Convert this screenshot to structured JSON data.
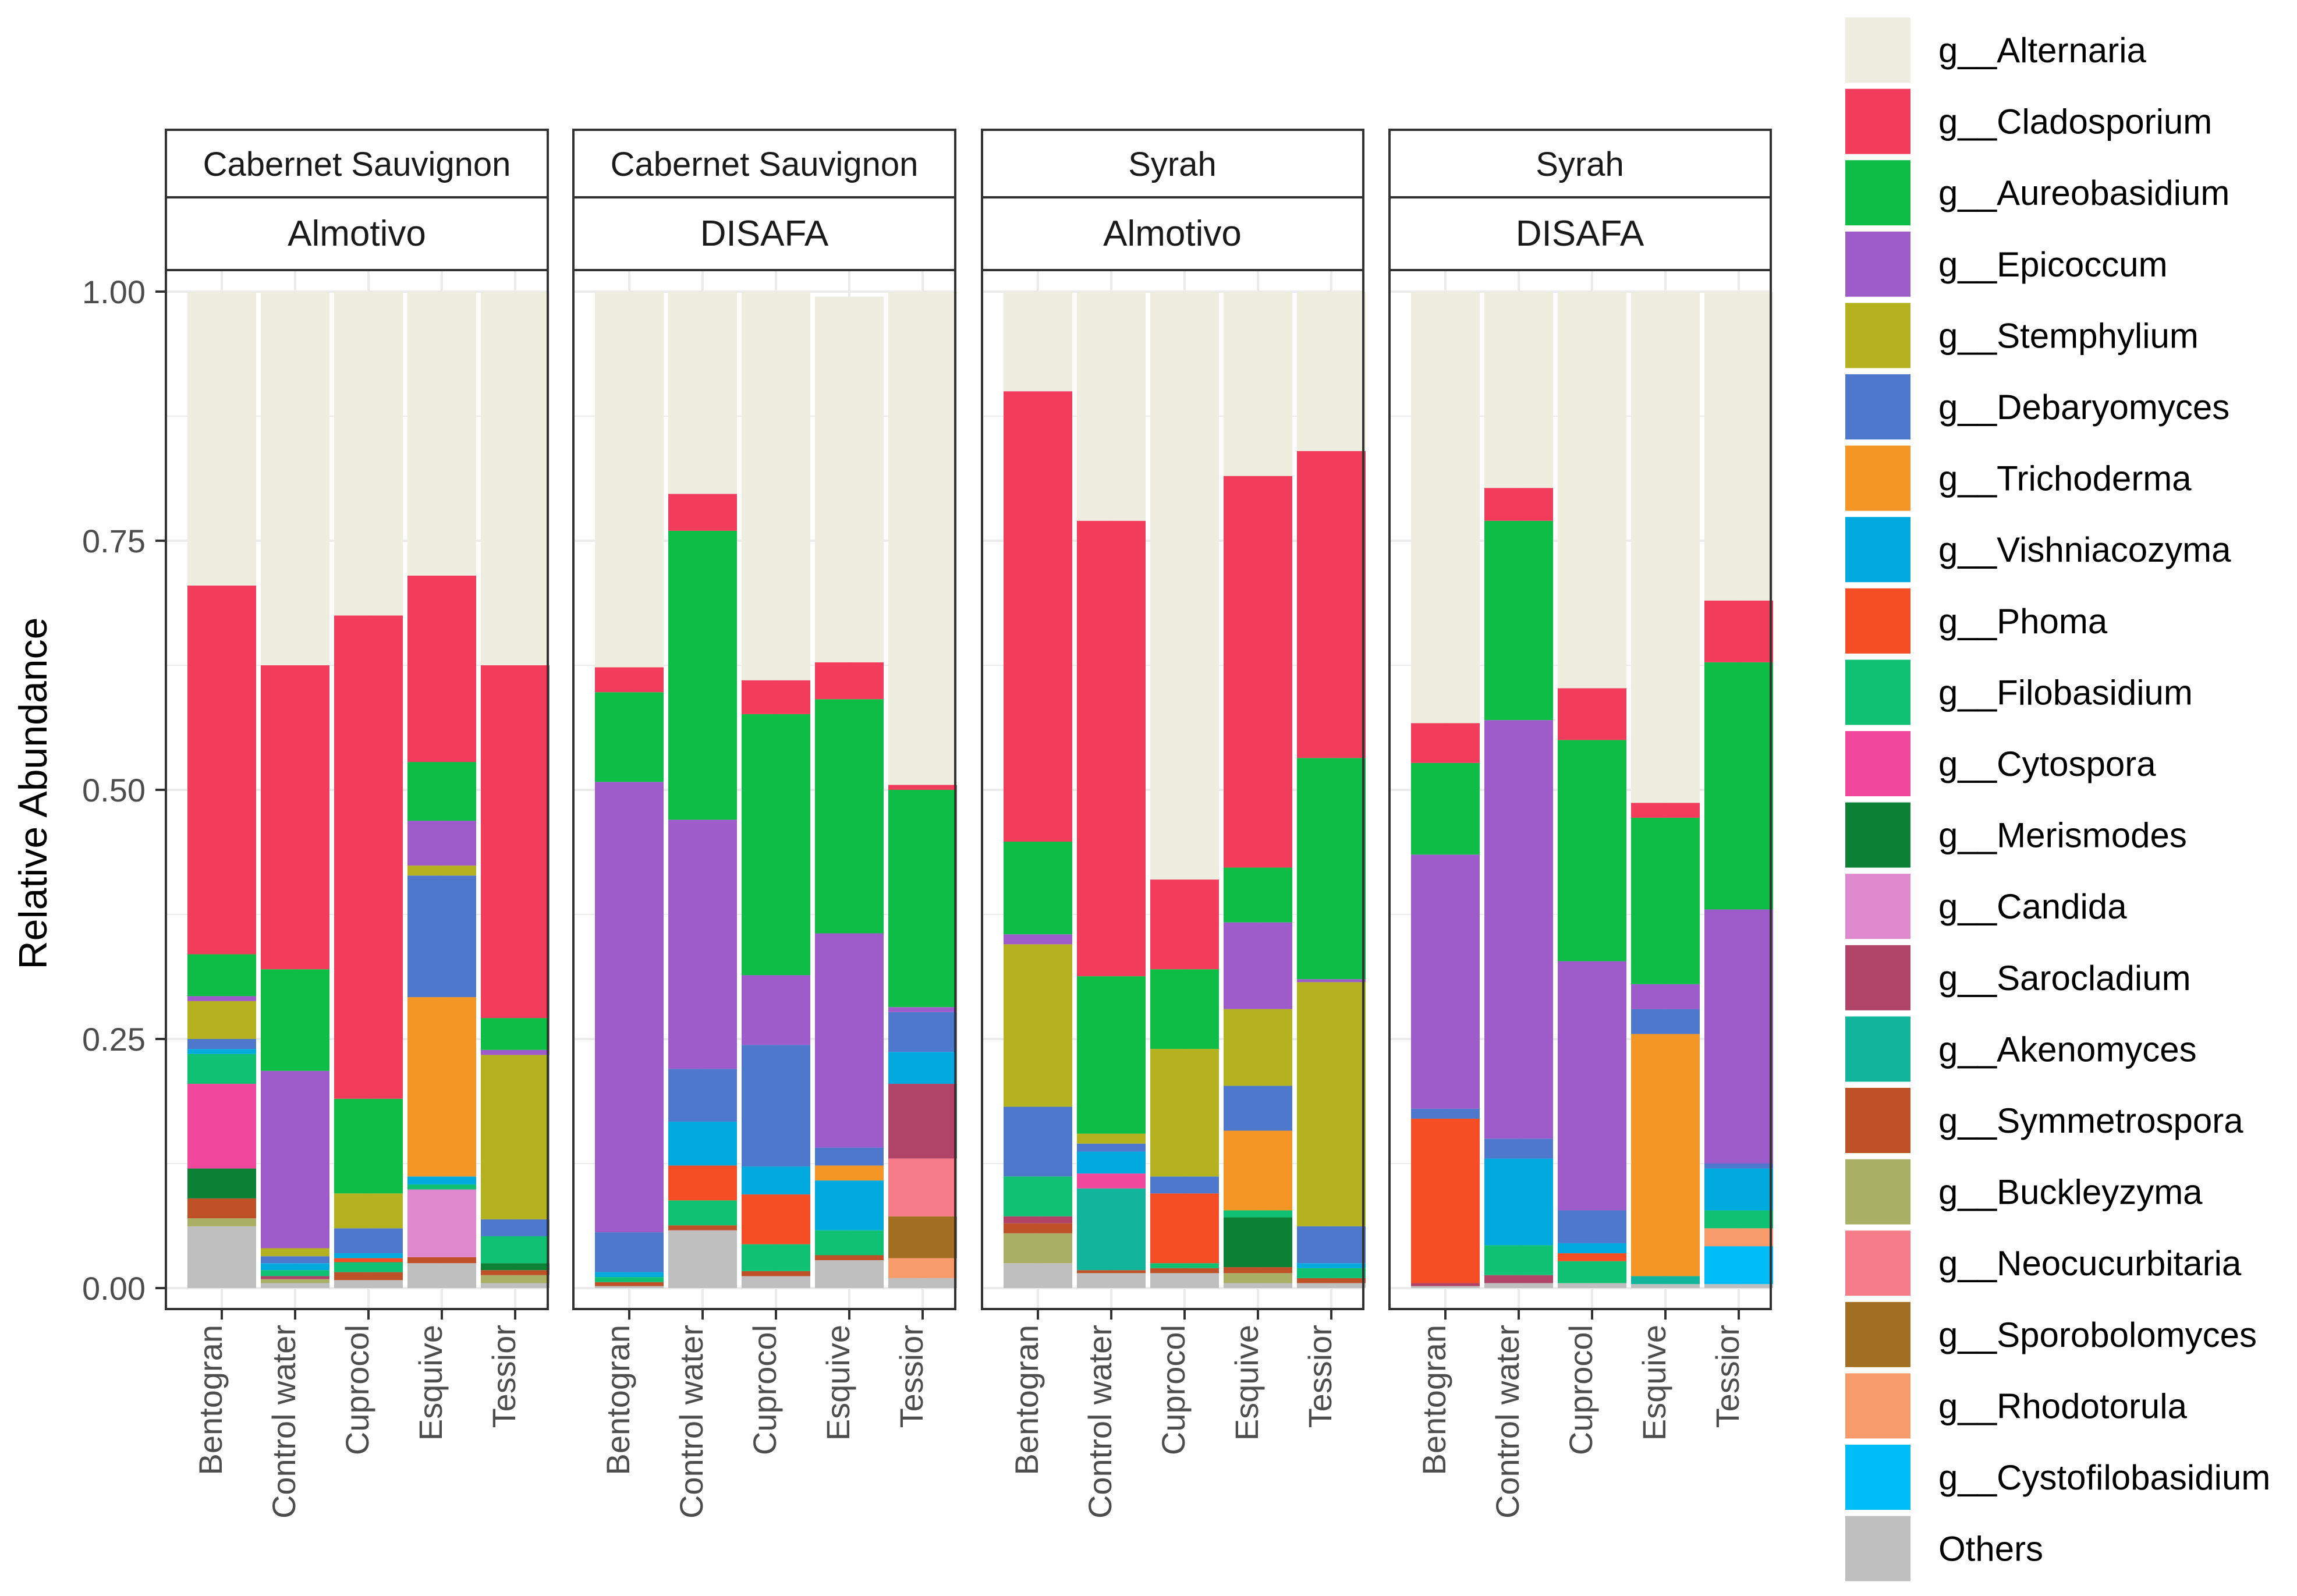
{
  "chart_data": {
    "type": "bar",
    "stacked": true,
    "ylabel": "Relative Abundance",
    "ylim": [
      0,
      1.0
    ],
    "yticks": [
      "0.00",
      "0.25",
      "0.50",
      "0.75",
      "1.00"
    ],
    "categories": [
      "Bentogran",
      "Control water",
      "Cuprocol",
      "Esquive",
      "Tessior"
    ],
    "taxa": [
      {
        "name": "g__Alternaria",
        "color": "#EEEEE0"
      },
      {
        "name": "g__Cladosporium",
        "color": "#F23C5C"
      },
      {
        "name": "g__Aureobasidium",
        "color": "#0EBD45"
      },
      {
        "name": "g__Epicoccum",
        "color": "#9E5BCA"
      },
      {
        "name": "g__Stemphylium",
        "color": "#B4B31F"
      },
      {
        "name": "g__Debaryomyces",
        "color": "#4E78CC"
      },
      {
        "name": "g__Trichoderma",
        "color": "#F39626"
      },
      {
        "name": "g__Vishniacozyma",
        "color": "#00AADF"
      },
      {
        "name": "g__Phoma",
        "color": "#F54E25"
      },
      {
        "name": "g__Filobasidium",
        "color": "#10C073"
      },
      {
        "name": "g__Cytospora",
        "color": "#F1489D"
      },
      {
        "name": "g__Merismodes",
        "color": "#0B8236"
      },
      {
        "name": "g__Candida",
        "color": "#DE88CD"
      },
      {
        "name": "g__Sarocladium",
        "color": "#AF4468"
      },
      {
        "name": "g__Akenomyces",
        "color": "#12B59C"
      },
      {
        "name": "g__Symmetrospora",
        "color": "#BF5128"
      },
      {
        "name": "g__Buckleyzyma",
        "color": "#A9B065"
      },
      {
        "name": "g__Neocucurbitaria",
        "color": "#F67C89"
      },
      {
        "name": "g__Sporobolomyces",
        "color": "#A16F21"
      },
      {
        "name": "g__Rhodotorula",
        "color": "#F79A6C"
      },
      {
        "name": "g__Cystofilobasidium",
        "color": "#00BDF8"
      },
      {
        "name": "Others",
        "color": "#BFBFBF"
      }
    ],
    "panels": [
      {
        "strip_top": "Cabernet Sauvignon",
        "strip_bottom": "Almotivo",
        "bars": [
          {
            "category": "Bentogran",
            "values": {
              "Others": 0.062,
              "g__Buckleyzyma": 0.008,
              "g__Symmetrospora": 0.02,
              "g__Merismodes": 0.03,
              "g__Cytospora": 0.085,
              "g__Filobasidium": 0.03,
              "g__Vishniacozyma": 0.005,
              "g__Debaryomyces": 0.01,
              "g__Epicoccum": 0.005,
              "g__Stemphylium": 0.038,
              "g__Aureobasidium": 0.042,
              "g__Cladosporium": 0.37,
              "g__Alternaria": 0.295
            }
          },
          {
            "category": "Control water",
            "values": {
              "Others": 0.005,
              "g__Sarocladium": 0.003,
              "g__Buckleyzyma": 0.004,
              "g__Filobasidium": 0.006,
              "g__Vishniacozyma": 0.007,
              "g__Debaryomyces": 0.007,
              "g__Stemphylium": 0.008,
              "g__Epicoccum": 0.178,
              "g__Aureobasidium": 0.102,
              "g__Cladosporium": 0.305,
              "g__Alternaria": 0.375
            }
          },
          {
            "category": "Cuprocol",
            "values": {
              "Others": 0.008,
              "g__Symmetrospora": 0.008,
              "g__Phoma": 0.004,
              "g__Filobasidium": 0.01,
              "g__Vishniacozyma": 0.005,
              "g__Debaryomyces": 0.025,
              "g__Stemphylium": 0.035,
              "g__Aureobasidium": 0.095,
              "g__Cladosporium": 0.485,
              "g__Alternaria": 0.325
            }
          },
          {
            "category": "Esquive",
            "values": {
              "Others": 0.025,
              "g__Symmetrospora": 0.006,
              "g__Candida": 0.068,
              "g__Filobasidium": 0.005,
              "g__Vishniacozyma": 0.008,
              "g__Trichoderma": 0.18,
              "g__Debaryomyces": 0.122,
              "g__Stemphylium": 0.01,
              "g__Epicoccum": 0.045,
              "g__Aureobasidium": 0.059,
              "g__Cladosporium": 0.187,
              "g__Alternaria": 0.285
            }
          },
          {
            "category": "Tessior",
            "values": {
              "Others": 0.005,
              "g__Buckleyzyma": 0.008,
              "g__Symmetrospora": 0.005,
              "g__Merismodes": 0.007,
              "g__Filobasidium": 0.027,
              "g__Debaryomyces": 0.017,
              "g__Stemphylium": 0.165,
              "g__Epicoccum": 0.005,
              "g__Aureobasidium": 0.032,
              "g__Cladosporium": 0.354,
              "g__Alternaria": 0.375
            }
          }
        ]
      },
      {
        "strip_top": "Cabernet Sauvignon",
        "strip_bottom": "DISAFA",
        "bars": [
          {
            "category": "Bentogran",
            "values": {
              "Others": 0.002,
              "g__Symmetrospora": 0.004,
              "g__Filobasidium": 0.005,
              "g__Vishniacozyma": 0.005,
              "g__Debaryomyces": 0.04,
              "g__Epicoccum": 0.452,
              "g__Aureobasidium": 0.09,
              "g__Cladosporium": 0.025,
              "g__Alternaria": 0.377
            }
          },
          {
            "category": "Control water",
            "values": {
              "Others": 0.058,
              "g__Symmetrospora": 0.005,
              "g__Filobasidium": 0.025,
              "g__Phoma": 0.035,
              "g__Vishniacozyma": 0.044,
              "g__Debaryomyces": 0.053,
              "g__Epicoccum": 0.25,
              "g__Aureobasidium": 0.29,
              "g__Cladosporium": 0.037,
              "g__Alternaria": 0.203
            }
          },
          {
            "category": "Cuprocol",
            "values": {
              "Others": 0.012,
              "g__Symmetrospora": 0.005,
              "g__Filobasidium": 0.027,
              "g__Phoma": 0.05,
              "g__Vishniacozyma": 0.028,
              "g__Debaryomyces": 0.122,
              "g__Epicoccum": 0.07,
              "g__Aureobasidium": 0.262,
              "g__Cladosporium": 0.034,
              "g__Alternaria": 0.39
            }
          },
          {
            "category": "Esquive",
            "values": {
              "Others": 0.028,
              "g__Symmetrospora": 0.005,
              "g__Filobasidium": 0.025,
              "g__Trichoderma": 0.015,
              "g__Vishniacozyma": 0.05,
              "g__Debaryomyces": 0.018,
              "g__Epicoccum": 0.215,
              "g__Aureobasidium": 0.235,
              "g__Cladosporium": 0.037,
              "g__Alternaria": 0.367
            }
          },
          {
            "category": "Tessior",
            "values": {
              "Others": 0.01,
              "g__Rhodotorula": 0.02,
              "g__Sporobolomyces": 0.042,
              "g__Neocucurbitaria": 0.058,
              "g__Sarocladium": 0.075,
              "g__Vishniacozyma": 0.032,
              "g__Debaryomyces": 0.04,
              "g__Epicoccum": 0.005,
              "g__Aureobasidium": 0.218,
              "g__Cladosporium": 0.005,
              "g__Alternaria": 0.495
            }
          }
        ]
      },
      {
        "strip_top": "Syrah",
        "strip_bottom": "Almotivo",
        "bars": [
          {
            "category": "Bentogran",
            "values": {
              "Others": 0.025,
              "g__Buckleyzyma": 0.03,
              "g__Sarocladium": 0.007,
              "g__Symmetrospora": 0.01,
              "g__Filobasidium": 0.04,
              "g__Debaryomyces": 0.07,
              "g__Stemphylium": 0.163,
              "g__Epicoccum": 0.01,
              "g__Aureobasidium": 0.093,
              "g__Cladosporium": 0.452,
              "g__Alternaria": 0.1
            }
          },
          {
            "category": "Control water",
            "values": {
              "Others": 0.015,
              "g__Symmetrospora": 0.003,
              "g__Akenomyces": 0.082,
              "g__Cytospora": 0.015,
              "g__Vishniacozyma": 0.022,
              "g__Debaryomyces": 0.008,
              "g__Stemphylium": 0.01,
              "g__Aureobasidium": 0.158,
              "g__Cladosporium": 0.457,
              "g__Alternaria": 0.23
            }
          },
          {
            "category": "Cuprocol",
            "values": {
              "Others": 0.015,
              "g__Symmetrospora": 0.005,
              "g__Filobasidium": 0.005,
              "g__Phoma": 0.07,
              "g__Debaryomyces": 0.017,
              "g__Stemphylium": 0.128,
              "g__Aureobasidium": 0.08,
              "g__Cladosporium": 0.09,
              "g__Alternaria": 0.59
            }
          },
          {
            "category": "Esquive",
            "values": {
              "Others": 0.005,
              "g__Buckleyzyma": 0.01,
              "g__Symmetrospora": 0.006,
              "g__Merismodes": 0.05,
              "g__Filobasidium": 0.007,
              "g__Trichoderma": 0.08,
              "g__Debaryomyces": 0.045,
              "g__Stemphylium": 0.077,
              "g__Epicoccum": 0.087,
              "g__Aureobasidium": 0.055,
              "g__Cladosporium": 0.393,
              "g__Alternaria": 0.185
            }
          },
          {
            "category": "Tessior",
            "values": {
              "Others": 0.005,
              "g__Symmetrospora": 0.005,
              "g__Filobasidium": 0.01,
              "g__Vishniacozyma": 0.005,
              "g__Debaryomyces": 0.037,
              "g__Stemphylium": 0.245,
              "g__Epicoccum": 0.003,
              "g__Aureobasidium": 0.222,
              "g__Cladosporium": 0.308,
              "g__Alternaria": 0.16
            }
          }
        ]
      },
      {
        "strip_top": "Syrah",
        "strip_bottom": "DISAFA",
        "bars": [
          {
            "category": "Bentogran",
            "values": {
              "Others": 0.002,
              "g__Sarocladium": 0.003,
              "g__Phoma": 0.165,
              "g__Debaryomyces": 0.01,
              "g__Epicoccum": 0.255,
              "g__Aureobasidium": 0.092,
              "g__Cladosporium": 0.04,
              "g__Alternaria": 0.433
            }
          },
          {
            "category": "Control water",
            "values": {
              "Others": 0.005,
              "g__Sarocladium": 0.008,
              "g__Filobasidium": 0.03,
              "g__Vishniacozyma": 0.087,
              "g__Debaryomyces": 0.02,
              "g__Epicoccum": 0.42,
              "g__Aureobasidium": 0.2,
              "g__Cladosporium": 0.033,
              "g__Alternaria": 0.197
            }
          },
          {
            "category": "Cuprocol",
            "values": {
              "Others": 0.005,
              "g__Filobasidium": 0.022,
              "g__Phoma": 0.008,
              "g__Vishniacozyma": 0.01,
              "g__Debaryomyces": 0.033,
              "g__Epicoccum": 0.25,
              "g__Aureobasidium": 0.222,
              "g__Cladosporium": 0.052,
              "g__Alternaria": 0.398
            }
          },
          {
            "category": "Esquive",
            "values": {
              "Others": 0.004,
              "g__Akenomyces": 0.008,
              "g__Trichoderma": 0.243,
              "g__Debaryomyces": 0.025,
              "g__Epicoccum": 0.025,
              "g__Aureobasidium": 0.167,
              "g__Cladosporium": 0.015,
              "g__Alternaria": 0.513
            }
          },
          {
            "category": "Tessior",
            "values": {
              "Others": 0.004,
              "g__Cystofilobasidium": 0.038,
              "g__Rhodotorula": 0.018,
              "g__Filobasidium": 0.018,
              "g__Vishniacozyma": 0.042,
              "g__Debaryomyces": 0.005,
              "g__Epicoccum": 0.255,
              "g__Aureobasidium": 0.248,
              "g__Cladosporium": 0.062,
              "g__Alternaria": 0.31
            }
          }
        ]
      }
    ]
  }
}
